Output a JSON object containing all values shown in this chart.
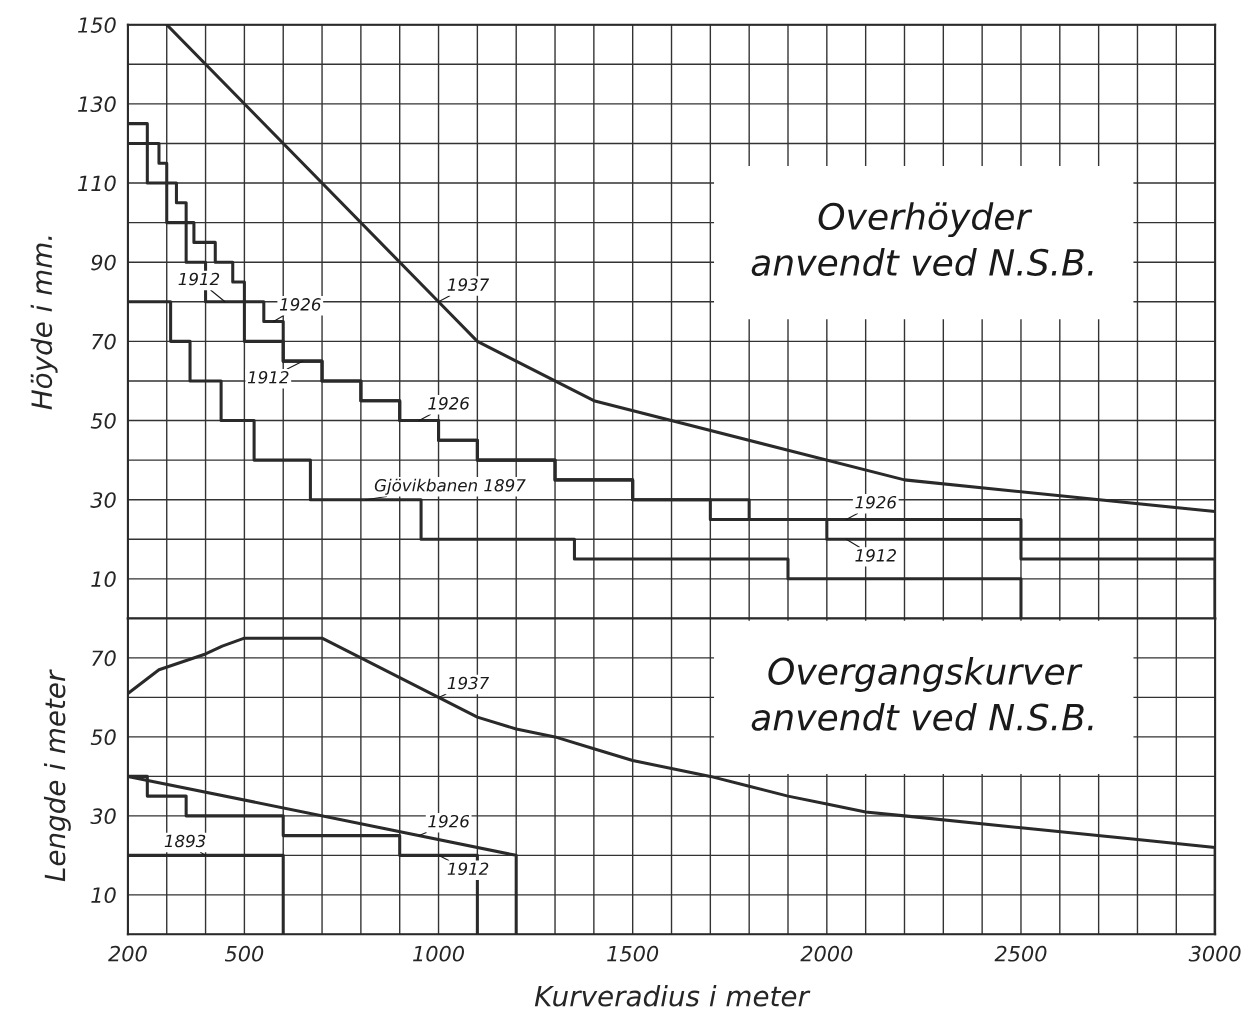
{
  "chart_data": [
    {
      "type": "step",
      "title": "Overhöyder\nanvendt ved N.S.B.",
      "ylabel": "Höyde i mm.",
      "tick_labels": "y",
      "grid": true,
      "marker": "none",
      "line_style": "solid",
      "xlim": [
        200,
        3000
      ],
      "ylim": [
        0,
        150
      ],
      "xticks": [
        200,
        {
          "value": 300,
          "label": null
        },
        {
          "value": 400,
          "label": null
        },
        500,
        {
          "value": 600,
          "label": null
        },
        {
          "value": 700,
          "label": null
        },
        {
          "value": 800,
          "label": null
        },
        {
          "value": 900,
          "label": null
        },
        1000,
        {
          "value": 1100,
          "label": null
        },
        {
          "value": 1200,
          "label": null
        },
        {
          "value": 1300,
          "label": null
        },
        {
          "value": 1400,
          "label": null
        },
        1500,
        {
          "value": 1600,
          "label": null
        },
        {
          "value": 1700,
          "label": null
        },
        {
          "value": 1800,
          "label": null
        },
        {
          "value": 1900,
          "label": null
        },
        2000,
        {
          "value": 2100,
          "label": null
        },
        {
          "value": 2200,
          "label": null
        },
        {
          "value": 2300,
          "label": null
        },
        {
          "value": 2400,
          "label": null
        },
        2500,
        {
          "value": 2600,
          "label": null
        },
        {
          "value": 2700,
          "label": null
        },
        {
          "value": 2800,
          "label": null
        },
        {
          "value": 2900,
          "label": null
        },
        3000
      ],
      "yticks": [
        {
          "value": 0,
          "label": null
        },
        10,
        {
          "value": 20,
          "label": null
        },
        30,
        {
          "value": 40,
          "label": null
        },
        50,
        {
          "value": 60,
          "label": null
        },
        70,
        {
          "value": 80,
          "label": null
        },
        90,
        {
          "value": 100,
          "label": null
        },
        110,
        {
          "value": 120,
          "label": null
        },
        130,
        {
          "value": 140,
          "label": null
        },
        150
      ],
      "series": [
        {
          "name": "1937",
          "type": "line",
          "color": "#2a2a2a",
          "x": [
            300,
            1000,
            1100,
            1400,
            2200,
            3000
          ],
          "values": [
            150,
            80,
            70,
            55,
            35,
            27
          ]
        },
        {
          "name": "1926",
          "color": "#2a2a2a",
          "x": [
            200,
            280,
            300,
            325,
            350,
            370,
            425,
            470,
            500,
            550,
            600,
            700,
            800,
            900,
            1000,
            1100,
            1300,
            1500,
            1700,
            2500,
            3000,
            3000
          ],
          "values": [
            120,
            115,
            110,
            105,
            100,
            95,
            90,
            85,
            80,
            75,
            65,
            60,
            55,
            50,
            45,
            40,
            35,
            30,
            25,
            15,
            15,
            0
          ]
        },
        {
          "name": "1912",
          "color": "#2a2a2a",
          "x": [
            200,
            250,
            300,
            350,
            400,
            500,
            600,
            700,
            800,
            900,
            1000,
            1100,
            1300,
            1500,
            1800,
            2000,
            3000,
            3000
          ],
          "values": [
            125,
            110,
            100,
            90,
            80,
            70,
            65,
            60,
            55,
            50,
            45,
            40,
            35,
            30,
            25,
            20,
            20,
            0
          ]
        },
        {
          "name": "Gjövikbanen 1897",
          "color": "#2a2a2a",
          "x": [
            200,
            310,
            360,
            440,
            525,
            670,
            955,
            1350,
            1900,
            2500,
            2500
          ],
          "values": [
            80,
            70,
            60,
            50,
            40,
            30,
            20,
            15,
            10,
            10,
            0
          ]
        }
      ],
      "annotations": [
        {
          "text": "1912",
          "x": 450,
          "y": 80
        },
        {
          "text": "1926",
          "x": 950,
          "y": 50
        },
        {
          "text": "1926",
          "x": 2050,
          "y": 25
        },
        {
          "text": "1912",
          "x": 2050,
          "y": 20
        }
      ]
    },
    {
      "type": "step",
      "title": "Overgangskurver\nanvendt ved N.S.B.",
      "ylabel": "Lengde i meter",
      "xlabel": "Kurveradius i meter",
      "grid": true,
      "marker": "none",
      "line_style": "solid",
      "xlim": [
        200,
        3000
      ],
      "ylim": [
        0,
        80
      ],
      "xticks": [
        200,
        {
          "value": 300,
          "label": null
        },
        {
          "value": 400,
          "label": null
        },
        500,
        {
          "value": 600,
          "label": null
        },
        {
          "value": 700,
          "label": null
        },
        {
          "value": 800,
          "label": null
        },
        {
          "value": 900,
          "label": null
        },
        1000,
        {
          "value": 1100,
          "label": null
        },
        {
          "value": 1200,
          "label": null
        },
        {
          "value": 1300,
          "label": null
        },
        {
          "value": 1400,
          "label": null
        },
        1500,
        {
          "value": 1600,
          "label": null
        },
        {
          "value": 1700,
          "label": null
        },
        {
          "value": 1800,
          "label": null
        },
        {
          "value": 1900,
          "label": null
        },
        2000,
        {
          "value": 2100,
          "label": null
        },
        {
          "value": 2200,
          "label": null
        },
        {
          "value": 2300,
          "label": null
        },
        {
          "value": 2400,
          "label": null
        },
        2500,
        {
          "value": 2600,
          "label": null
        },
        {
          "value": 2700,
          "label": null
        },
        {
          "value": 2800,
          "label": null
        },
        {
          "value": 2900,
          "label": null
        },
        3000
      ],
      "yticks": [
        {
          "value": 0,
          "label": null
        },
        10,
        {
          "value": 20,
          "label": null
        },
        30,
        {
          "value": 40,
          "label": null
        },
        50,
        {
          "value": 60,
          "label": null
        },
        70,
        {
          "value": 80,
          "label": null
        }
      ],
      "series": [
        {
          "name": "1937",
          "type": "line",
          "color": "#2a2a2a",
          "x": [
            200,
            280,
            400,
            443,
            500,
            700,
            1000,
            1100,
            1200,
            1300,
            1400,
            1500,
            1600,
            1700,
            1800,
            1900,
            2000,
            2100,
            2200,
            2500,
            2800,
            3000,
            3000
          ],
          "values": [
            61,
            67,
            71,
            73,
            75,
            75,
            60,
            55,
            52,
            50,
            47,
            44,
            42,
            40,
            37.5,
            35,
            33,
            31,
            30,
            27,
            24,
            22,
            0
          ]
        },
        {
          "name": "1926",
          "type": "line",
          "color": "#2a2a2a",
          "x": [
            200,
            1200,
            1200
          ],
          "values": [
            40,
            20,
            0
          ]
        },
        {
          "name": "1912",
          "color": "#2a2a2a",
          "x": [
            200,
            250,
            350,
            600,
            900,
            1100,
            1100
          ],
          "values": [
            40,
            35,
            30,
            25,
            20,
            20,
            0
          ]
        },
        {
          "name": "1893",
          "color": "#2a2a2a",
          "x": [
            200,
            600,
            600
          ],
          "values": [
            20,
            20,
            0
          ]
        }
      ]
    }
  ]
}
